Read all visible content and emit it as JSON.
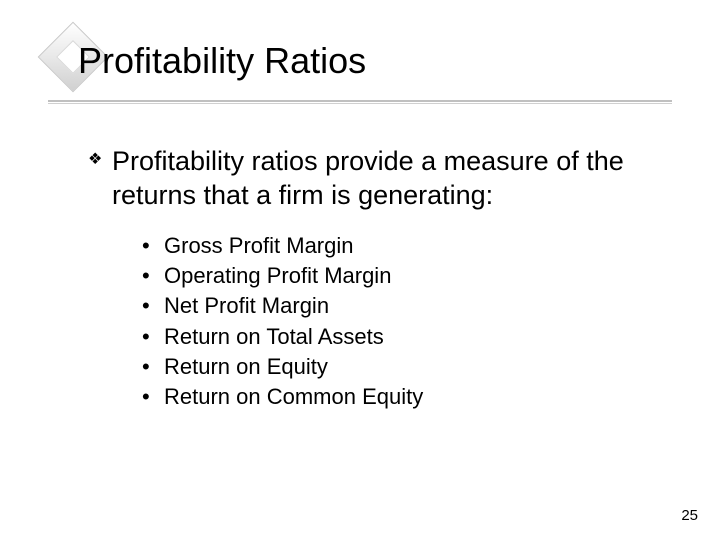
{
  "slide": {
    "title": "Profitability Ratios",
    "main_bullet": "Profitability ratios provide a measure of the returns that a firm is generating:",
    "sub_bullets": [
      "Gross Profit Margin",
      "Operating Profit Margin",
      "Net Profit Margin",
      "Return on Total Assets",
      "Return on Equity",
      "Return on Common Equity"
    ],
    "page_number": "25"
  },
  "style": {
    "background_color": "#ffffff",
    "title_fontsize": 36,
    "body_fontsize": 27,
    "sub_fontsize": 22,
    "text_color": "#000000",
    "underline_color": "#c0c0c0",
    "diamond_gradient_start": "#ffffff",
    "diamond_gradient_end": "#d0d0d0"
  }
}
